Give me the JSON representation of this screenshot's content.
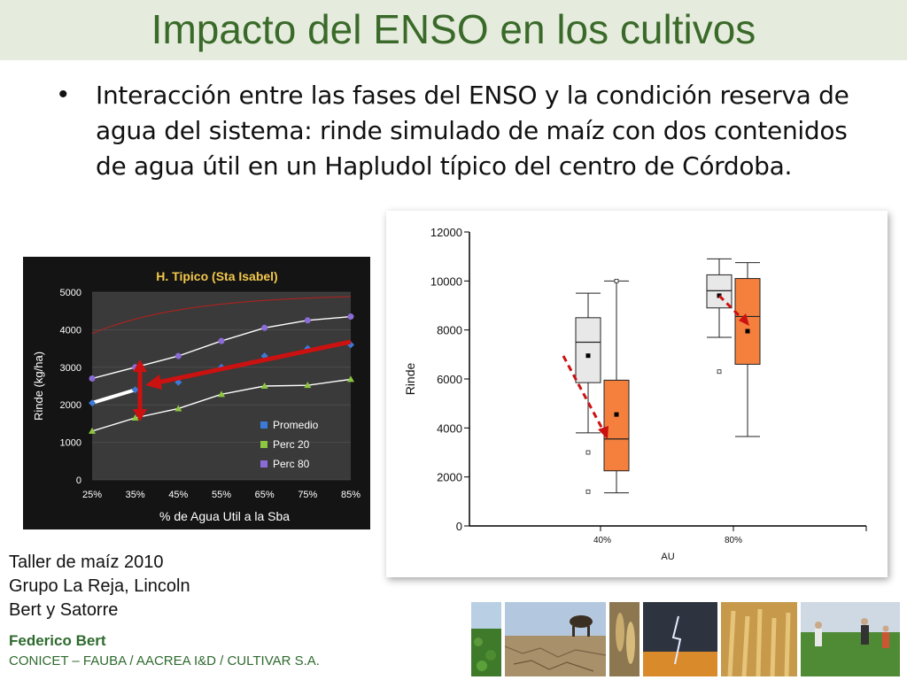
{
  "slide": {
    "title": "Impacto del ENSO en los cultivos",
    "bullet_marker": "•",
    "bullet_text": "Interacción entre las fases del ENSO y la condición reserva de agua del sistema: rinde simulado de maíz con dos contenidos de agua útil en un Hapludol típico del centro de Córdoba."
  },
  "credits": {
    "line1": "Taller de maíz 2010",
    "line2": "Grupo La Reja, Lincoln",
    "line3": "Bert y Satorre",
    "author": "Federico Bert",
    "affiliation": "CONICET – FAUBA / AACREA I&D / CULTIVAR S.A."
  },
  "photos": [
    {
      "icon": "soybean-field-photo"
    },
    {
      "icon": "cow-dry-land-photo"
    },
    {
      "icon": "wheat-ears-photo"
    },
    {
      "icon": "lightning-storm-photo"
    },
    {
      "icon": "wheat-field-photo"
    },
    {
      "icon": "farmers-field-photo"
    }
  ],
  "colors": {
    "title": "#3a6a2a",
    "title_bar": "#e6ecdd",
    "footer": "#2e6a2e",
    "orange": "#f5803e",
    "arrow": "#cc1111"
  },
  "chart_data": [
    {
      "type": "scatter",
      "title": "H. Tipico (Sta Isabel)",
      "xlabel": "% de Agua Util a la Sba",
      "ylabel": "Rinde (kg/ha)",
      "categories": [
        "25%",
        "35%",
        "45%",
        "55%",
        "65%",
        "75%",
        "85%"
      ],
      "x": [
        25,
        35,
        45,
        55,
        65,
        75,
        85
      ],
      "ylim": [
        0,
        5000
      ],
      "yticks": [
        "0",
        "1000",
        "2000",
        "3000",
        "4000",
        "5000"
      ],
      "series": [
        {
          "name": "Promedio",
          "color": "#3b7ad8",
          "values": [
            2050,
            2400,
            2600,
            3000,
            3300,
            3500,
            3600
          ]
        },
        {
          "name": "Perc 20",
          "color": "#8dc63f",
          "values": [
            1300,
            1650,
            1900,
            2280,
            2500,
            2520,
            2680
          ]
        },
        {
          "name": "Perc 80",
          "color": "#8b6bd6",
          "values": [
            2700,
            3000,
            3300,
            3700,
            4050,
            4250,
            4350
          ]
        }
      ],
      "background": "#1e1e1e",
      "legend": "bottom-right"
    },
    {
      "type": "box",
      "xlabel": "AU",
      "ylabel": "Rinde",
      "categories": [
        "40%",
        "80%"
      ],
      "ylim": [
        0,
        12000
      ],
      "yticks": [
        "0",
        "2000",
        "4000",
        "6000",
        "8000",
        "10000",
        "12000"
      ],
      "groups": [
        {
          "category": "40%",
          "boxes": [
            {
              "fill": "#e8e8e8",
              "whisker_low": 3800,
              "q1": 5850,
              "median": 7500,
              "q3": 8500,
              "whisker_high": 9500,
              "mean": 6950,
              "outliers": [
                3000,
                1400
              ]
            },
            {
              "fill": "#f5803e",
              "whisker_low": 1350,
              "q1": 2250,
              "median": 3550,
              "q3": 5950,
              "whisker_high": 10000,
              "mean": 4550,
              "outliers": [
                10000
              ]
            }
          ]
        },
        {
          "category": "80%",
          "boxes": [
            {
              "fill": "#e8e8e8",
              "whisker_low": 7700,
              "q1": 8900,
              "median": 9600,
              "q3": 10250,
              "whisker_high": 10900,
              "mean": 9400,
              "outliers": [
                6300
              ]
            },
            {
              "fill": "#f5803e",
              "whisker_low": 3650,
              "q1": 6600,
              "median": 8550,
              "q3": 10100,
              "whisker_high": 10750,
              "mean": 7950,
              "outliers": []
            }
          ]
        }
      ]
    }
  ]
}
